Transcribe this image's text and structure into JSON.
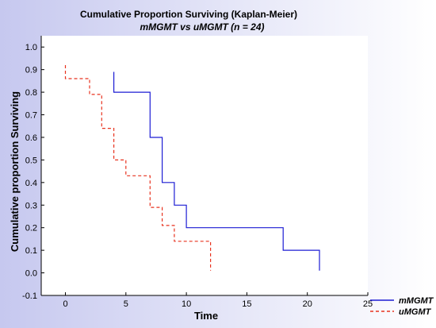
{
  "chart_data": {
    "type": "line",
    "title": "Cumulative Proportion Surviving (Kaplan-Meier)",
    "subtitle": "mMGMT vs uMGMT (n = 24)",
    "xlabel": "Time",
    "ylabel": "Cumulative proportion Surviving",
    "xlim": [
      -2,
      25
    ],
    "ylim": [
      -0.1,
      1.05
    ],
    "xticks": [
      0,
      5,
      10,
      15,
      20,
      25
    ],
    "yticks": [
      -0.1,
      0.0,
      0.1,
      0.2,
      0.3,
      0.4,
      0.5,
      0.6,
      0.7,
      0.8,
      0.9,
      1.0
    ],
    "ytick_labels": [
      "-0.1",
      "0.0",
      "0.1",
      "0.2",
      "0.3",
      "0.4",
      "0.5",
      "0.6",
      "0.7",
      "0.8",
      "0.9",
      "1.0"
    ],
    "grid": false,
    "legend_position": "bottom-right",
    "series": [
      {
        "name": "mMGMT",
        "style": "solid",
        "color": "#1c1cd4",
        "x": [
          4,
          4,
          7,
          7,
          8,
          8,
          9,
          9,
          10,
          10,
          18,
          18,
          21,
          21
        ],
        "y": [
          0.89,
          0.8,
          0.8,
          0.6,
          0.6,
          0.4,
          0.4,
          0.3,
          0.3,
          0.2,
          0.2,
          0.1,
          0.1,
          0.01
        ]
      },
      {
        "name": "uMGMT",
        "style": "dashed",
        "color": "#e8321e",
        "x": [
          0,
          0,
          2,
          2,
          3,
          3,
          4,
          4,
          5,
          5,
          7,
          7,
          8,
          8,
          9,
          9,
          12,
          12
        ],
        "y": [
          0.92,
          0.86,
          0.86,
          0.79,
          0.79,
          0.64,
          0.64,
          0.5,
          0.5,
          0.43,
          0.43,
          0.29,
          0.29,
          0.21,
          0.21,
          0.14,
          0.14,
          0.01
        ]
      }
    ]
  }
}
